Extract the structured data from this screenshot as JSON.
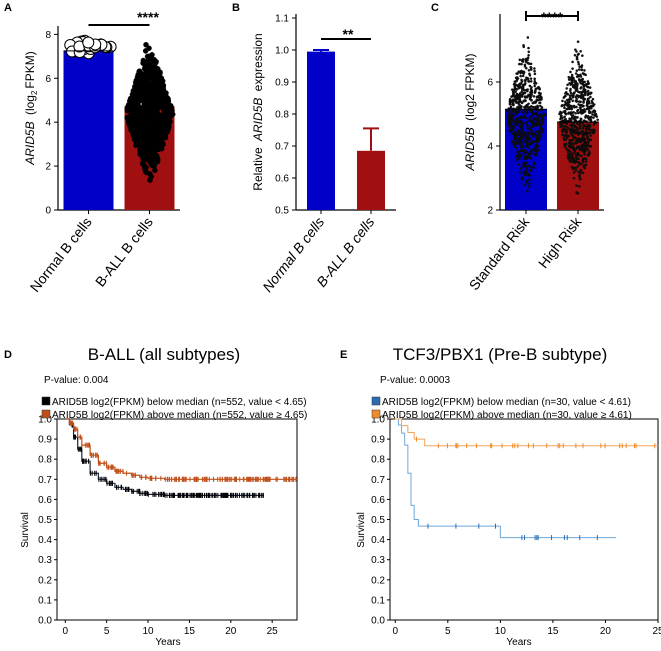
{
  "panel_letters": {
    "a": "A",
    "b": "B",
    "c": "C",
    "d": "D",
    "e": "E"
  },
  "chart_data": [
    {
      "panel": "A",
      "type": "bar",
      "title": "",
      "ylabel_italic": "ARID5B",
      "ylabel_rest": "(log",
      "ylabel_sub": "2",
      "ylabel_end": "FPKM)",
      "ylim": [
        0,
        8.2
      ],
      "yticks": [
        0,
        2,
        4,
        6,
        8
      ],
      "categories": [
        "Normal B cells",
        "B-ALL B cells"
      ],
      "values": [
        7.25,
        4.7
      ],
      "colors": [
        "#0000c8",
        "#a01010"
      ],
      "significance": "****",
      "point_ranges": [
        [
          6.8,
          8.0
        ],
        [
          1.0,
          7.8
        ]
      ]
    },
    {
      "panel": "B",
      "type": "bar",
      "ylabel_pre": "Relative",
      "ylabel_italic": "ARID5B",
      "ylabel_post": "expression",
      "ylim": [
        0.5,
        1.1
      ],
      "yticks": [
        0.5,
        0.6,
        0.7,
        0.8,
        0.9,
        1.0,
        1.1
      ],
      "ytick_labels": [
        "0.5",
        "0.6",
        "0.7",
        "0.8",
        "0.9",
        "1.0",
        "1.1"
      ],
      "categories": [
        "Normal B cells",
        "B-ALL B cells"
      ],
      "values": [
        0.995,
        0.685
      ],
      "errors": [
        0.005,
        0.07
      ],
      "colors": [
        "#0000c8",
        "#a01010"
      ],
      "significance": "**"
    },
    {
      "panel": "C",
      "type": "bar",
      "ylabel_italic": "ARID5B",
      "ylabel_rest": "(log2 FPKM)",
      "ylim": [
        2,
        8
      ],
      "yticks": [
        2,
        4,
        6
      ],
      "categories": [
        "Standard Risk",
        "High Risk"
      ],
      "values": [
        5.15,
        4.75
      ],
      "colors": [
        "#0000c8",
        "#a01010"
      ],
      "significance": "****",
      "point_ranges": [
        [
          2.3,
          7.6
        ],
        [
          2.3,
          7.4
        ]
      ]
    },
    {
      "panel": "D",
      "type": "line",
      "title": "B-ALL (all subtypes)",
      "pvalue": "P-value: 0.004",
      "xlabel": "Years",
      "ylabel": "Survival",
      "xlim": [
        -1,
        28
      ],
      "ylim": [
        0,
        1.0
      ],
      "xticks": [
        0,
        5,
        10,
        15,
        20,
        25
      ],
      "yticks": [
        0,
        0.1,
        0.2,
        0.3,
        0.4,
        0.5,
        0.6,
        0.7,
        0.8,
        0.9,
        1.0
      ],
      "series": [
        {
          "name": "ARID5B log2(FPKM) below median (n=552, value < 4.65)",
          "color": "#1a2a48",
          "marker": "#000000",
          "x": [
            0,
            0.5,
            1,
            1.5,
            2,
            3,
            4,
            5,
            6,
            7,
            8,
            9,
            10,
            12,
            15,
            20,
            24
          ],
          "y": [
            1.0,
            0.97,
            0.91,
            0.85,
            0.79,
            0.73,
            0.7,
            0.68,
            0.66,
            0.65,
            0.64,
            0.63,
            0.625,
            0.62,
            0.62,
            0.62,
            0.62
          ]
        },
        {
          "name": "ARID5B log2(FPKM) above median (n=552, value ≥ 4.65)",
          "color": "#c0501a",
          "marker": "#c0501a",
          "x": [
            0,
            0.5,
            1,
            1.5,
            2,
            3,
            4,
            5,
            6,
            7,
            8,
            9,
            10,
            12,
            15,
            20,
            25,
            28
          ],
          "y": [
            1.0,
            0.98,
            0.95,
            0.91,
            0.87,
            0.82,
            0.78,
            0.76,
            0.74,
            0.73,
            0.72,
            0.71,
            0.705,
            0.7,
            0.7,
            0.7,
            0.7,
            0.7
          ]
        }
      ]
    },
    {
      "panel": "E",
      "type": "line",
      "title": "TCF3/PBX1 (Pre-B subtype)",
      "pvalue": "P-value: 0.0003",
      "xlabel": "Years",
      "ylabel": "Survival",
      "xlim": [
        -0.5,
        25
      ],
      "ylim": [
        0,
        1.0
      ],
      "xticks": [
        0,
        5,
        10,
        15,
        20,
        25
      ],
      "yticks": [
        0,
        0.1,
        0.2,
        0.3,
        0.4,
        0.5,
        0.6,
        0.7,
        0.8,
        0.9,
        1.0
      ],
      "series": [
        {
          "name": "ARID5B log2(FPKM) below median (n=30, value < 4.61)",
          "color": "#6fa8dc",
          "marker": "#2a6db0",
          "x": [
            0,
            0.3,
            0.6,
            0.9,
            1.2,
            1.5,
            1.8,
            2.2,
            9.9,
            10.0,
            21
          ],
          "y": [
            1.0,
            0.97,
            0.93,
            0.87,
            0.73,
            0.57,
            0.5,
            0.467,
            0.467,
            0.41,
            0.41
          ]
        },
        {
          "name": "ARID5B log2(FPKM) above median (n=30, value ≥ 4.61)",
          "color": "#f5a55a",
          "marker": "#f08a2a",
          "x": [
            0,
            0.6,
            1.2,
            1.8,
            2.8,
            25
          ],
          "y": [
            1.0,
            0.967,
            0.933,
            0.9,
            0.867,
            0.867
          ]
        }
      ]
    }
  ]
}
